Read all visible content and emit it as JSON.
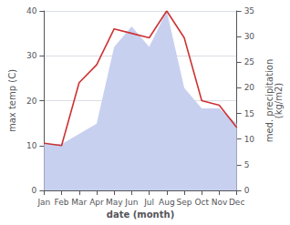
{
  "chart_data": {
    "type": "line",
    "xlabel": "date (month)",
    "ylabel": "max temp (C)",
    "y2label": "med. precipitation\n(kg/m2)",
    "categories": [
      "Jan",
      "Feb",
      "Mar",
      "Apr",
      "May",
      "Jun",
      "Jul",
      "Aug",
      "Sep",
      "Oct",
      "Nov",
      "Dec"
    ],
    "series": [
      {
        "type": "area",
        "axis": "y2",
        "color": "#c8d0f0",
        "values": [
          9,
          9,
          11,
          13,
          28,
          32,
          28,
          35,
          20,
          16,
          16,
          13
        ]
      },
      {
        "type": "line",
        "color": "#cc3333",
        "values": [
          10.5,
          10.0,
          24.0,
          28.0,
          36.0,
          35.0,
          34.0,
          40.0,
          34.0,
          20.0,
          19.0,
          14.0
        ]
      }
    ],
    "ylim": [
      0,
      40
    ],
    "yticks": [
      0,
      10,
      20,
      30,
      40
    ],
    "y2lim": [
      0,
      35
    ],
    "y2ticks": [
      0,
      5,
      10,
      15,
      20,
      25,
      30,
      35
    ],
    "grid": true
  }
}
